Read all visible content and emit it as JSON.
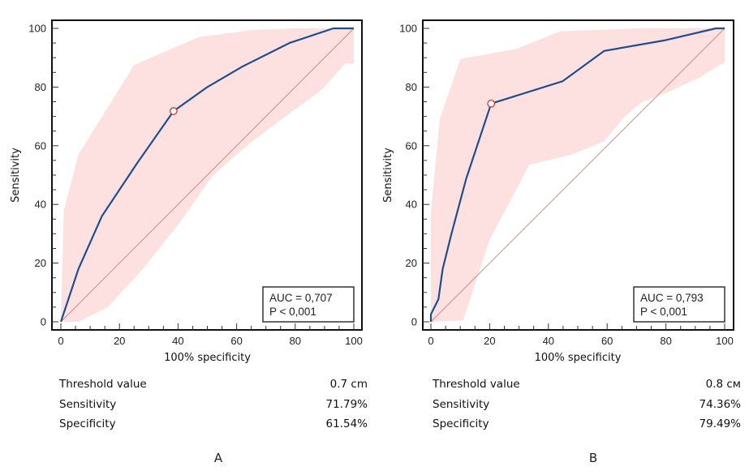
{
  "colors": {
    "curve": "#1f4e8c",
    "band": "#fde0e0",
    "diagonal": "#c98080",
    "marker_stroke": "#e03030",
    "frame": "#111111"
  },
  "chart_data": [
    {
      "id": "A",
      "type": "line",
      "title": "",
      "panel_label": "A",
      "xlabel": "100% specificity",
      "ylabel": "Sensitivity",
      "xlim": [
        0,
        100
      ],
      "ylim": [
        0,
        100
      ],
      "x_ticks": [
        0,
        20,
        40,
        60,
        80,
        100
      ],
      "y_ticks": [
        0,
        20,
        40,
        60,
        80,
        100
      ],
      "x_tick_labels": [
        "0",
        "20",
        "40",
        "60",
        "80",
        "100"
      ],
      "y_tick_labels": [
        "0",
        "20",
        "40",
        "60",
        "80",
        "100"
      ],
      "grid": false,
      "series": [
        {
          "name": "ROC curve",
          "x": [
            0,
            6,
            14,
            26,
            38.46,
            50,
            62,
            78,
            93,
            100
          ],
          "y": [
            0,
            18,
            36,
            54,
            71.79,
            80,
            87,
            95,
            100,
            100
          ]
        },
        {
          "name": "Reference line",
          "x": [
            0,
            100
          ],
          "y": [
            0,
            100
          ]
        }
      ],
      "confidence_band": {
        "upper": {
          "x": [
            0,
            1,
            6,
            25,
            47,
            66,
            80,
            100
          ],
          "y": [
            0,
            38,
            57,
            87.5,
            97,
            99.5,
            100,
            100
          ]
        },
        "lower": {
          "x": [
            0,
            6,
            16,
            28,
            40,
            52,
            66,
            78,
            89,
            97,
            100
          ],
          "y": [
            0,
            0,
            5,
            18,
            33,
            50,
            62,
            71,
            79,
            88,
            88
          ]
        }
      },
      "optimal_point": {
        "x": 38.46,
        "y": 71.79
      },
      "annotation": {
        "line1": "AUC = 0,707",
        "line2": "P < 0,001",
        "placement": "bottom-right"
      },
      "stats": {
        "threshold_label": "Threshold value",
        "threshold_value": "0.7 cm",
        "sensitivity_label": "Sensitivity",
        "sensitivity_value": "71.79%",
        "specificity_label": "Specificity",
        "specificity_value": "61.54%"
      }
    },
    {
      "id": "B",
      "type": "line",
      "title": "",
      "panel_label": "B",
      "xlabel": "100% specificity",
      "ylabel": "Sensitivity",
      "xlim": [
        0,
        100
      ],
      "ylim": [
        0,
        100
      ],
      "x_ticks": [
        0,
        20,
        40,
        60,
        80,
        100
      ],
      "y_ticks": [
        0,
        20,
        40,
        60,
        80,
        100
      ],
      "x_tick_labels": [
        "0",
        "20",
        "40",
        "60",
        "80",
        "100"
      ],
      "y_tick_labels": [
        "0",
        "20",
        "40",
        "60",
        "80",
        "100"
      ],
      "grid": false,
      "series": [
        {
          "name": "ROC curve",
          "x": [
            0,
            0,
            2.56,
            4,
            7,
            12,
            20.51,
            44.87,
            58.97,
            80,
            97,
            100
          ],
          "y": [
            0,
            2.56,
            7.69,
            17.95,
            30,
            48.72,
            74.36,
            82,
            92.31,
            96,
            100,
            100
          ]
        },
        {
          "name": "Reference line",
          "x": [
            0,
            100
          ],
          "y": [
            0,
            100
          ]
        }
      ],
      "confidence_band": {
        "upper": {
          "x": [
            0,
            0,
            3,
            10,
            29,
            44,
            71,
            100
          ],
          "y": [
            0,
            37,
            69,
            89.5,
            93,
            99,
            100,
            100
          ]
        },
        "lower": {
          "x": [
            0,
            11,
            20,
            33.5,
            48,
            59,
            66,
            72,
            80,
            91,
            99,
            100
          ],
          "y": [
            0,
            0.5,
            28,
            53.5,
            57,
            61.5,
            70,
            75,
            78,
            83,
            88,
            88
          ]
        }
      },
      "optimal_point": {
        "x": 20.51,
        "y": 74.36
      },
      "annotation": {
        "line1": "AUC = 0,793",
        "line2": "P < 0,001",
        "placement": "bottom-right"
      },
      "stats": {
        "threshold_label": "Threshold value",
        "threshold_value": "0.8 см",
        "sensitivity_label": "Sensitivity",
        "sensitivity_value": "74.36%",
        "specificity_label": "Specificity",
        "specificity_value": "79.49%"
      }
    }
  ]
}
